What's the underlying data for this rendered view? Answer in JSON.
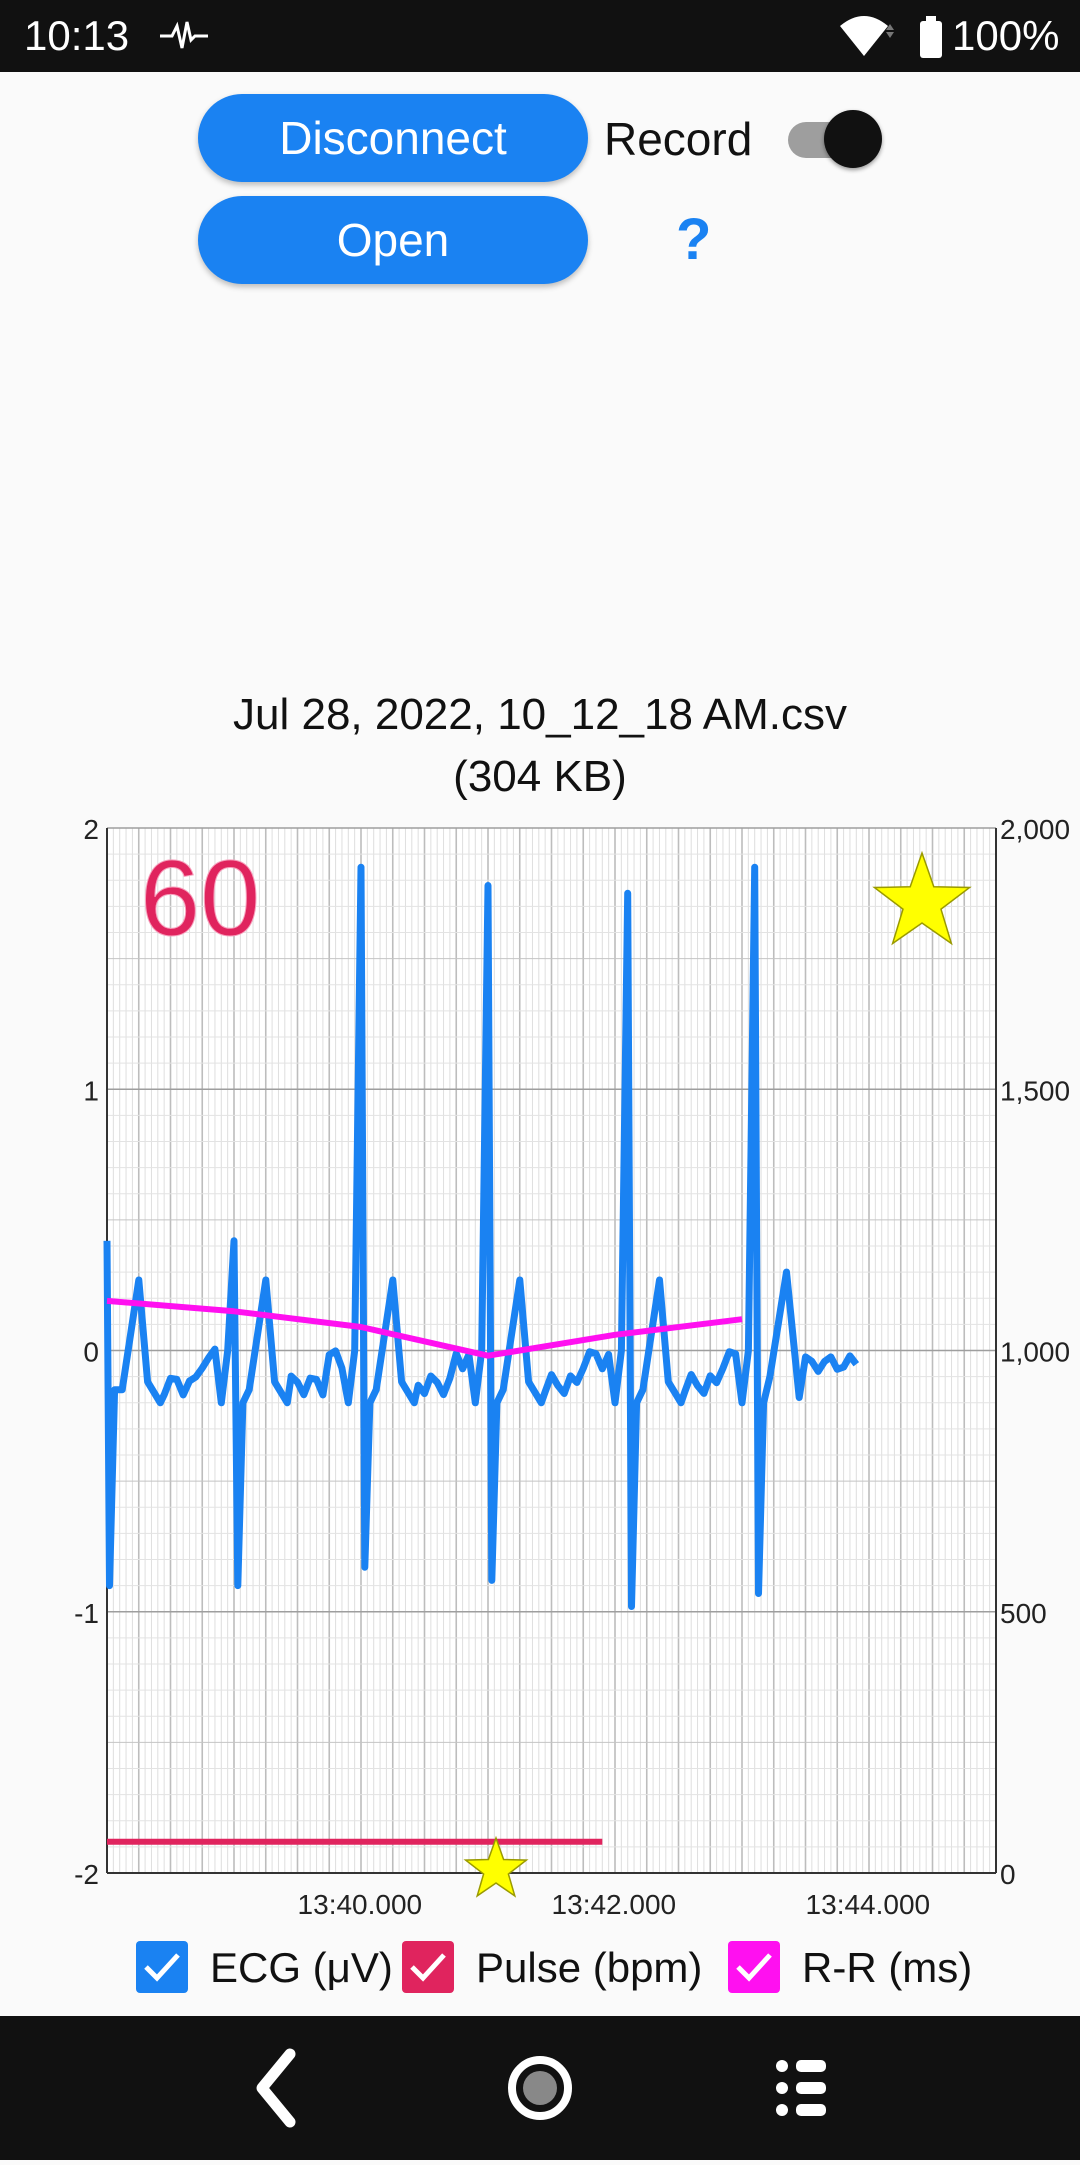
{
  "status_bar": {
    "time": "10:13",
    "battery": "100%",
    "icons": [
      "pulse-icon",
      "wifi-icon",
      "battery-icon"
    ]
  },
  "controls": {
    "disconnect_label": "Disconnect",
    "open_label": "Open",
    "record_label": "Record",
    "record_toggle_on": true,
    "help_label": "?"
  },
  "file": {
    "name": "Jul 28, 2022, 10_12_18 AM.csv",
    "size": "(304 KB)"
  },
  "heart_rate_display": "60",
  "colors": {
    "accent": "#1a82f2",
    "ecg": "#1a82f2",
    "pulse": "#e0245e",
    "rr": "#ff10f0",
    "star": "#ffff00"
  },
  "chart_data": {
    "type": "line",
    "x_ticks": [
      "13:40.000",
      "13:42.000",
      "13:44.000"
    ],
    "y_left_ticks": [
      "2",
      "1",
      "0",
      "-1",
      "-2"
    ],
    "y_right_ticks": [
      "2,000",
      "1,500",
      "1,000",
      "500",
      "0"
    ],
    "ylim_left": [
      -2,
      2
    ],
    "ylim_right": [
      0,
      2000
    ],
    "xlim_seconds": [
      38.0,
      45.0
    ],
    "grid": true,
    "series": [
      {
        "name": "ECG (μV)",
        "axis": "left",
        "peaks_x": [
          39.0,
          40.0,
          41.0,
          42.1,
          43.1
        ],
        "peaks_y": [
          0.42,
          1.85,
          1.78,
          1.75,
          1.85
        ],
        "troughs_y": [
          -0.9,
          -0.83,
          -0.88,
          -0.98,
          -0.93
        ],
        "baseline": -0.05,
        "end_x": 43.9
      },
      {
        "name": "Pulse (bpm)",
        "axis": "right",
        "x": [
          38.0,
          41.9
        ],
        "y": [
          60,
          60
        ]
      },
      {
        "name": "R-R (ms)",
        "axis": "right",
        "x": [
          38.0,
          39.0,
          40.0,
          41.0,
          42.0,
          43.0
        ],
        "y": [
          1095,
          1075,
          1045,
          990,
          1030,
          1060
        ]
      }
    ],
    "legend": [
      {
        "label": "ECG (μV)",
        "checked": true
      },
      {
        "label": "Pulse (bpm)",
        "checked": true
      },
      {
        "label": "R-R (ms)",
        "checked": true
      }
    ],
    "legend_position": "bottom"
  }
}
